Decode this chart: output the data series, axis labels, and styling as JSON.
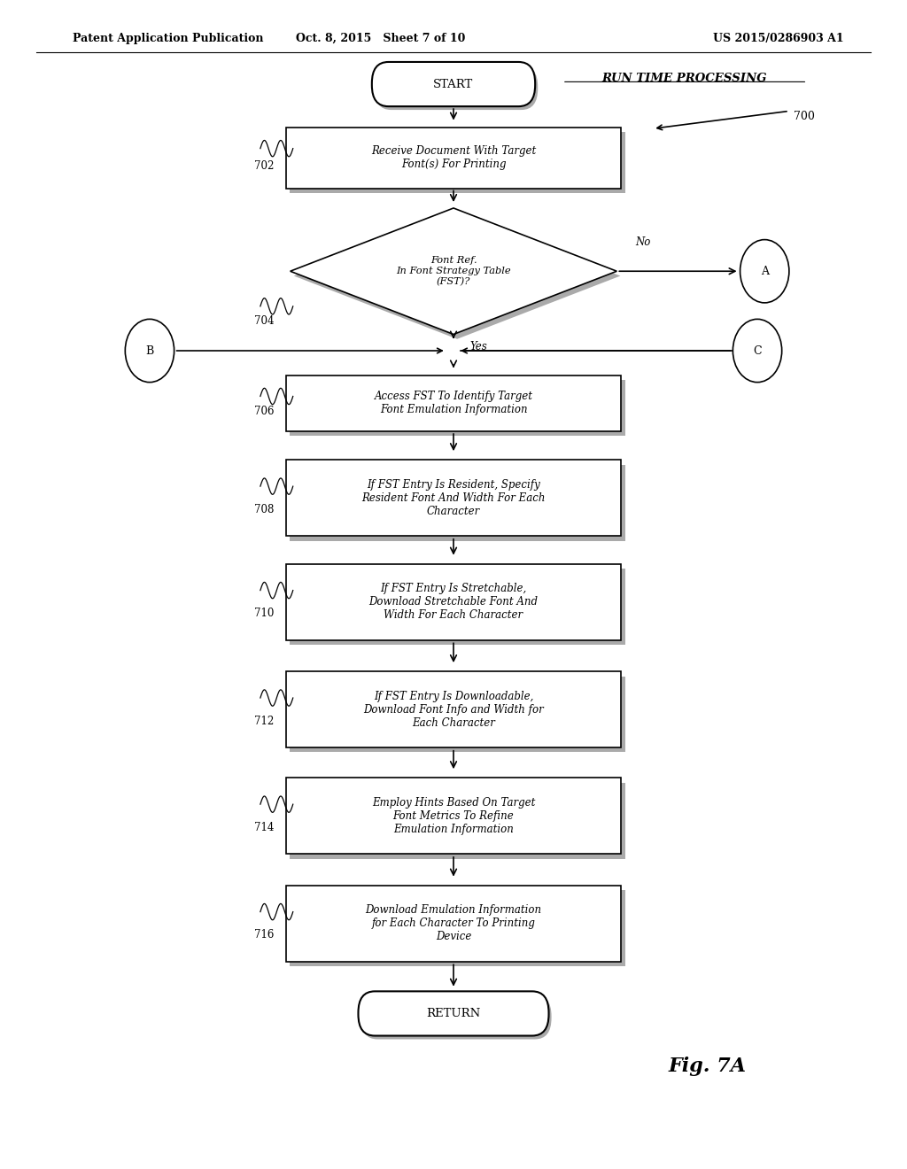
{
  "header_left": "Patent Application Publication",
  "header_middle": "Oct. 8, 2015   Sheet 7 of 10",
  "header_right": "US 2015/0286903 A1",
  "title_annotation": "RUN TIME PROCESSING",
  "fig_label": "Fig. 7A",
  "flow_label": "700",
  "bg_color": "#ffffff",
  "box_color": "#000000",
  "box_fill": "#ffffff",
  "text_color": "#000000"
}
